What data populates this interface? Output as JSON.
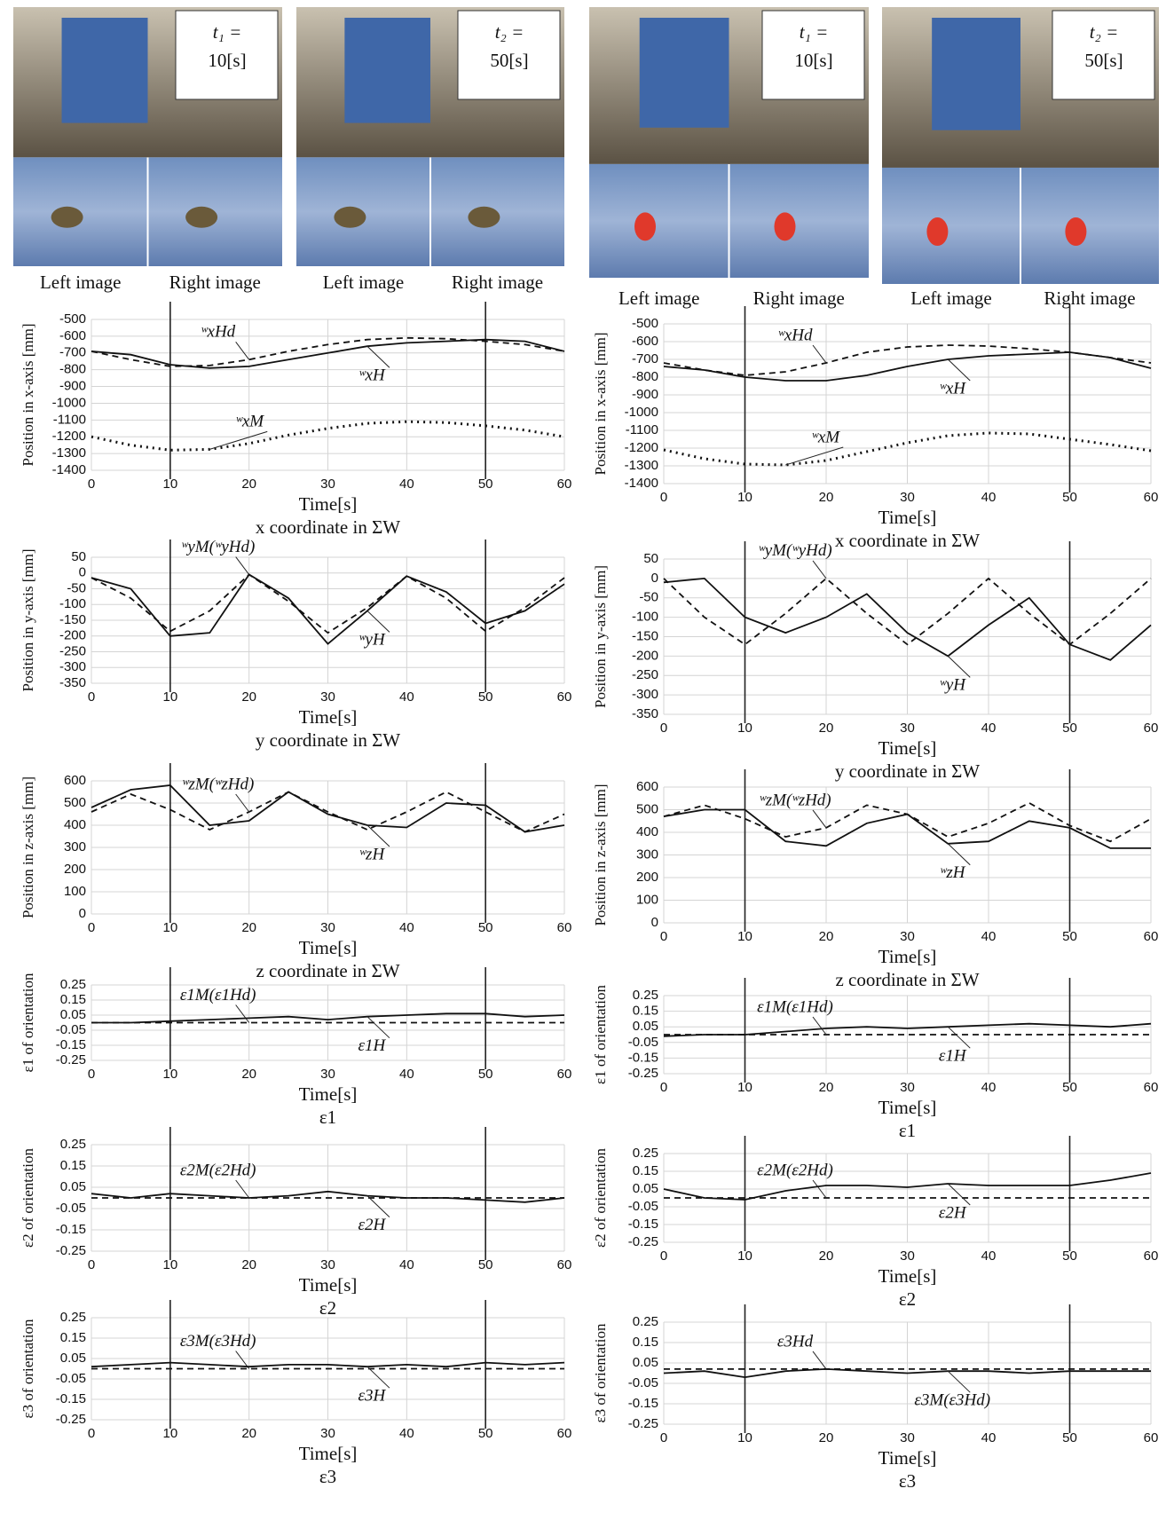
{
  "photos": [
    {
      "time": "t₁ =",
      "value": "10[s]",
      "left": "Left image",
      "right": "Right image"
    },
    {
      "time": "t₂ =",
      "value": "50[s]",
      "left": "Left image",
      "right": "Right image"
    },
    {
      "time": "t₁ =",
      "value": "10[s]",
      "left": "Left image",
      "right": "Right image"
    },
    {
      "time": "t₂ =",
      "value": "50[s]",
      "left": "Left image",
      "right": "Right image"
    }
  ],
  "chart_data": [
    {
      "type": "line",
      "title": "x coordinate in ΣW",
      "x_label": "Time[s]",
      "y_label": "Position in x-axis [mm]",
      "x": [
        0,
        5,
        10,
        15,
        20,
        25,
        30,
        35,
        40,
        45,
        50,
        55,
        60
      ],
      "xlim": [
        0,
        60
      ],
      "xticks": [
        0,
        10,
        20,
        30,
        40,
        50,
        60
      ],
      "ylim": [
        -1400,
        -500
      ],
      "yticks": [
        -500,
        -600,
        -700,
        -800,
        -900,
        -1000,
        -1100,
        -1200,
        -1300,
        -1400
      ],
      "grid": true,
      "vlines": [
        10,
        50
      ],
      "series": [
        {
          "name": "ʷxHd",
          "color": "#111",
          "dash": "dashed",
          "values": [
            -690,
            -740,
            -780,
            -775,
            -740,
            -690,
            -650,
            -620,
            -610,
            -615,
            -630,
            -650,
            -690
          ]
        },
        {
          "name": "ʷxH",
          "color": "#111",
          "dash": "solid",
          "values": [
            -690,
            -710,
            -770,
            -790,
            -780,
            -740,
            -700,
            -660,
            -640,
            -630,
            -620,
            -630,
            -690
          ]
        },
        {
          "name": "ʷxM",
          "color": "#111",
          "dash": "dotted",
          "values": [
            -1200,
            -1250,
            -1280,
            -1275,
            -1240,
            -1190,
            -1150,
            -1120,
            -1110,
            -1115,
            -1135,
            -1160,
            -1200
          ]
        }
      ]
    },
    {
      "type": "line",
      "title": "y coordinate in ΣW",
      "x_label": "Time[s]",
      "y_label": "Position in y-axis [mm]",
      "x": [
        0,
        5,
        10,
        15,
        20,
        25,
        30,
        35,
        40,
        45,
        50,
        55,
        60
      ],
      "xlim": [
        0,
        60
      ],
      "xticks": [
        0,
        10,
        20,
        30,
        40,
        50,
        60
      ],
      "ylim": [
        -350,
        50
      ],
      "yticks": [
        50,
        0,
        -50,
        -100,
        -150,
        -200,
        -250,
        -300,
        -350
      ],
      "grid": true,
      "vlines": [
        10,
        50
      ],
      "series": [
        {
          "name": "ʷyM(ʷyHd)",
          "color": "#111",
          "dash": "dashed",
          "values": [
            -15,
            -80,
            -185,
            -120,
            -5,
            -90,
            -190,
            -110,
            -10,
            -80,
            -185,
            -110,
            -15
          ]
        },
        {
          "name": "ʷyH",
          "color": "#111",
          "dash": "solid",
          "values": [
            -15,
            -50,
            -200,
            -190,
            -5,
            -80,
            -225,
            -120,
            -10,
            -60,
            -160,
            -120,
            -35
          ]
        }
      ]
    },
    {
      "type": "line",
      "title": "z coordinate in ΣW",
      "x_label": "Time[s]",
      "y_label": "Position in z-axis [mm]",
      "x": [
        0,
        5,
        10,
        15,
        20,
        25,
        30,
        35,
        40,
        45,
        50,
        55,
        60
      ],
      "xlim": [
        0,
        60
      ],
      "xticks": [
        0,
        10,
        20,
        30,
        40,
        50,
        60
      ],
      "ylim": [
        0,
        600
      ],
      "yticks": [
        600,
        500,
        400,
        300,
        200,
        100,
        0
      ],
      "grid": true,
      "vlines": [
        10,
        50
      ],
      "series": [
        {
          "name": "ʷzM(ʷzHd)",
          "color": "#111",
          "dash": "dashed",
          "values": [
            460,
            540,
            470,
            380,
            460,
            550,
            460,
            380,
            460,
            550,
            460,
            370,
            450
          ]
        },
        {
          "name": "ʷzH",
          "color": "#111",
          "dash": "solid",
          "values": [
            480,
            560,
            580,
            400,
            420,
            550,
            450,
            400,
            390,
            500,
            490,
            370,
            400
          ]
        }
      ]
    },
    {
      "type": "line",
      "title": "ε1",
      "x_label": "Time[s]",
      "y_label": "ε1 of orientation",
      "x": [
        0,
        5,
        10,
        15,
        20,
        25,
        30,
        35,
        40,
        45,
        50,
        55,
        60
      ],
      "xlim": [
        0,
        60
      ],
      "xticks": [
        0,
        10,
        20,
        30,
        40,
        50,
        60
      ],
      "ylim": [
        -0.25,
        0.25
      ],
      "yticks": [
        0.25,
        0.15,
        0.05,
        -0.05,
        -0.15,
        -0.25
      ],
      "grid": true,
      "vlines": [
        10,
        50
      ],
      "series": [
        {
          "name": "ε1M(ε1Hd)",
          "color": "#111",
          "dash": "dashed",
          "values": [
            0,
            0,
            0,
            0,
            0,
            0,
            0,
            0,
            0,
            0,
            0,
            0,
            0
          ]
        },
        {
          "name": "ε1H",
          "color": "#111",
          "dash": "solid",
          "values": [
            0,
            0,
            0.01,
            0.02,
            0.03,
            0.04,
            0.02,
            0.04,
            0.05,
            0.06,
            0.06,
            0.04,
            0.05
          ]
        }
      ]
    },
    {
      "type": "line",
      "title": "ε2",
      "x_label": "Time[s]",
      "y_label": "ε2 of orientation",
      "x": [
        0,
        5,
        10,
        15,
        20,
        25,
        30,
        35,
        40,
        45,
        50,
        55,
        60
      ],
      "xlim": [
        0,
        60
      ],
      "xticks": [
        0,
        10,
        20,
        30,
        40,
        50,
        60
      ],
      "ylim": [
        -0.25,
        0.25
      ],
      "yticks": [
        0.25,
        0.15,
        0.05,
        -0.05,
        -0.15,
        -0.25
      ],
      "grid": true,
      "vlines": [
        10,
        50
      ],
      "series": [
        {
          "name": "ε2M(ε2Hd)",
          "color": "#111",
          "dash": "dashed",
          "values": [
            0,
            0,
            0,
            0,
            0,
            0,
            0,
            0,
            0,
            0,
            0,
            0,
            0
          ]
        },
        {
          "name": "ε2H",
          "color": "#111",
          "dash": "solid",
          "values": [
            0.02,
            0,
            0.02,
            0.01,
            0,
            0.01,
            0.03,
            0.01,
            0,
            0,
            -0.01,
            -0.02,
            0
          ]
        }
      ]
    },
    {
      "type": "line",
      "title": "ε3",
      "x_label": "Time[s]",
      "y_label": "ε3 of orientation",
      "x": [
        0,
        5,
        10,
        15,
        20,
        25,
        30,
        35,
        40,
        45,
        50,
        55,
        60
      ],
      "xlim": [
        0,
        60
      ],
      "xticks": [
        0,
        10,
        20,
        30,
        40,
        50,
        60
      ],
      "ylim": [
        -0.25,
        0.25
      ],
      "yticks": [
        0.25,
        0.15,
        0.05,
        -0.05,
        -0.15,
        -0.25
      ],
      "grid": true,
      "vlines": [
        10,
        50
      ],
      "series": [
        {
          "name": "ε3M(ε3Hd)",
          "color": "#111",
          "dash": "dashed",
          "values": [
            0,
            0,
            0,
            0,
            0,
            0,
            0,
            0,
            0,
            0,
            0,
            0,
            0
          ]
        },
        {
          "name": "ε3H",
          "color": "#111",
          "dash": "solid",
          "values": [
            0.01,
            0.02,
            0.03,
            0.02,
            0.01,
            0.02,
            0.02,
            0.01,
            0.02,
            0.01,
            0.03,
            0.02,
            0.03
          ]
        }
      ]
    },
    {
      "type": "line",
      "title": "x coordinate in ΣW",
      "x_label": "Time[s]",
      "y_label": "Position in x-axis [mm]",
      "x": [
        0,
        5,
        10,
        15,
        20,
        25,
        30,
        35,
        40,
        45,
        50,
        55,
        60
      ],
      "xlim": [
        0,
        60
      ],
      "xticks": [
        0,
        10,
        20,
        30,
        40,
        50,
        60
      ],
      "ylim": [
        -1400,
        -500
      ],
      "yticks": [
        -500,
        -600,
        -700,
        -800,
        -900,
        -1000,
        -1100,
        -1200,
        -1300,
        -1400
      ],
      "grid": true,
      "vlines": [
        10,
        50
      ],
      "series": [
        {
          "name": "ʷxHd",
          "color": "#111",
          "dash": "dashed",
          "values": [
            -720,
            -760,
            -790,
            -770,
            -720,
            -660,
            -630,
            -620,
            -625,
            -640,
            -660,
            -690,
            -720
          ]
        },
        {
          "name": "ʷxH",
          "color": "#111",
          "dash": "solid",
          "values": [
            -740,
            -760,
            -800,
            -820,
            -820,
            -790,
            -740,
            -700,
            -680,
            -670,
            -660,
            -690,
            -750
          ]
        },
        {
          "name": "ʷxM",
          "color": "#111",
          "dash": "dotted",
          "values": [
            -1210,
            -1260,
            -1290,
            -1295,
            -1270,
            -1220,
            -1170,
            -1130,
            -1115,
            -1120,
            -1150,
            -1180,
            -1215
          ]
        }
      ]
    },
    {
      "type": "line",
      "title": "y coordinate in ΣW",
      "x_label": "Time[s]",
      "y_label": "Position in y-axis [mm]",
      "x": [
        0,
        5,
        10,
        15,
        20,
        25,
        30,
        35,
        40,
        45,
        50,
        55,
        60
      ],
      "xlim": [
        0,
        60
      ],
      "xticks": [
        0,
        10,
        20,
        30,
        40,
        50,
        60
      ],
      "ylim": [
        -350,
        50
      ],
      "yticks": [
        50,
        0,
        -50,
        -100,
        -150,
        -200,
        -250,
        -300,
        -350
      ],
      "grid": true,
      "vlines": [
        10,
        50
      ],
      "series": [
        {
          "name": "ʷyM(ʷyHd)",
          "color": "#111",
          "dash": "dashed",
          "values": [
            0,
            -100,
            -170,
            -90,
            0,
            -90,
            -170,
            -90,
            0,
            -90,
            -170,
            -90,
            0
          ]
        },
        {
          "name": "ʷyH",
          "color": "#111",
          "dash": "solid",
          "values": [
            -10,
            0,
            -100,
            -140,
            -100,
            -40,
            -140,
            -200,
            -120,
            -50,
            -170,
            -210,
            -120
          ]
        }
      ]
    },
    {
      "type": "line",
      "title": "z coordinate in ΣW",
      "x_label": "Time[s]",
      "y_label": "Position in z-axis [mm]",
      "x": [
        0,
        5,
        10,
        15,
        20,
        25,
        30,
        35,
        40,
        45,
        50,
        55,
        60
      ],
      "xlim": [
        0,
        60
      ],
      "xticks": [
        0,
        10,
        20,
        30,
        40,
        50,
        60
      ],
      "ylim": [
        0,
        600
      ],
      "yticks": [
        600,
        500,
        400,
        300,
        200,
        100,
        0
      ],
      "grid": true,
      "vlines": [
        10,
        50
      ],
      "series": [
        {
          "name": "ʷzM(ʷzHd)",
          "color": "#111",
          "dash": "dashed",
          "values": [
            470,
            520,
            460,
            380,
            420,
            520,
            480,
            380,
            440,
            530,
            430,
            360,
            460
          ]
        },
        {
          "name": "ʷzH",
          "color": "#111",
          "dash": "solid",
          "values": [
            470,
            500,
            500,
            360,
            340,
            440,
            480,
            350,
            360,
            450,
            420,
            330,
            330
          ]
        }
      ]
    },
    {
      "type": "line",
      "title": "ε1",
      "x_label": "Time[s]",
      "y_label": "ε1 of orientation",
      "x": [
        0,
        5,
        10,
        15,
        20,
        25,
        30,
        35,
        40,
        45,
        50,
        55,
        60
      ],
      "xlim": [
        0,
        60
      ],
      "xticks": [
        0,
        10,
        20,
        30,
        40,
        50,
        60
      ],
      "ylim": [
        -0.25,
        0.25
      ],
      "yticks": [
        0.25,
        0.15,
        0.05,
        -0.05,
        -0.15,
        -0.25
      ],
      "grid": true,
      "vlines": [
        10,
        50
      ],
      "series": [
        {
          "name": "ε1M(ε1Hd)",
          "color": "#111",
          "dash": "dashed",
          "values": [
            0,
            0,
            0,
            0,
            0,
            0,
            0,
            0,
            0,
            0,
            0,
            0,
            0
          ]
        },
        {
          "name": "ε1H",
          "color": "#111",
          "dash": "solid",
          "values": [
            -0.01,
            0,
            0,
            0.02,
            0.04,
            0.05,
            0.04,
            0.05,
            0.06,
            0.07,
            0.06,
            0.05,
            0.07
          ]
        }
      ]
    },
    {
      "type": "line",
      "title": "ε2",
      "x_label": "Time[s]",
      "y_label": "ε2 of orientation",
      "x": [
        0,
        5,
        10,
        15,
        20,
        25,
        30,
        35,
        40,
        45,
        50,
        55,
        60
      ],
      "xlim": [
        0,
        60
      ],
      "xticks": [
        0,
        10,
        20,
        30,
        40,
        50,
        60
      ],
      "ylim": [
        -0.25,
        0.25
      ],
      "yticks": [
        0.25,
        0.15,
        0.05,
        -0.05,
        -0.15,
        -0.25
      ],
      "grid": true,
      "vlines": [
        10,
        50
      ],
      "series": [
        {
          "name": "ε2M(ε2Hd)",
          "color": "#111",
          "dash": "dashed",
          "values": [
            0,
            0,
            0,
            0,
            0,
            0,
            0,
            0,
            0,
            0,
            0,
            0,
            0
          ]
        },
        {
          "name": "ε2H",
          "color": "#111",
          "dash": "solid",
          "values": [
            0.05,
            0,
            -0.01,
            0.04,
            0.07,
            0.07,
            0.06,
            0.08,
            0.07,
            0.07,
            0.07,
            0.1,
            0.14
          ]
        }
      ]
    },
    {
      "type": "line",
      "title": "ε3",
      "x_label": "Time[s]",
      "y_label": "ε3 of orientation",
      "x": [
        0,
        5,
        10,
        15,
        20,
        25,
        30,
        35,
        40,
        45,
        50,
        55,
        60
      ],
      "xlim": [
        0,
        60
      ],
      "xticks": [
        0,
        10,
        20,
        30,
        40,
        50,
        60
      ],
      "ylim": [
        -0.25,
        0.25
      ],
      "yticks": [
        0.25,
        0.15,
        0.05,
        -0.05,
        -0.15,
        -0.25
      ],
      "grid": true,
      "vlines": [
        10,
        50
      ],
      "series": [
        {
          "name": "ε3Hd",
          "color": "#111",
          "dash": "dashed",
          "values": [
            0.02,
            0.02,
            0.02,
            0.02,
            0.02,
            0.02,
            0.02,
            0.02,
            0.02,
            0.02,
            0.02,
            0.02,
            0.02
          ]
        },
        {
          "name": "ε3M(ε3Hd)",
          "color": "#111",
          "dash": "solid",
          "values": [
            0,
            0.01,
            -0.02,
            0.01,
            0.02,
            0.01,
            0,
            0.01,
            0.01,
            0,
            0.01,
            0.01,
            0.01
          ]
        }
      ]
    }
  ]
}
